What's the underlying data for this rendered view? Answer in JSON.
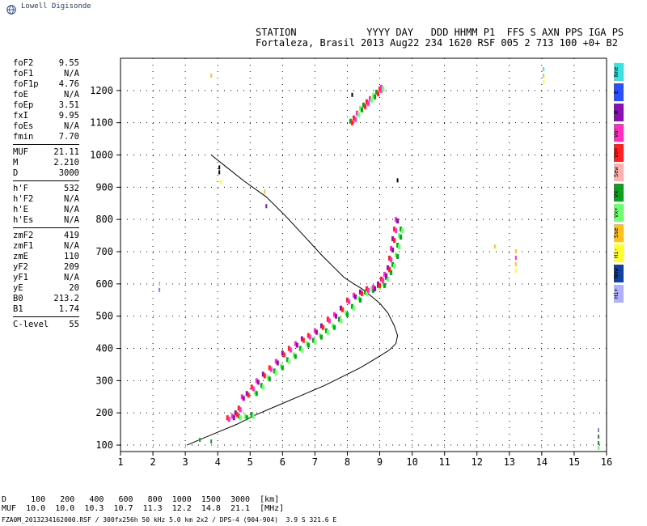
{
  "brand": {
    "text": "Lowell Digisonde",
    "icon": "globe-icon"
  },
  "header": {
    "line1": "STATION            YYYY DAY   DDD HHMM P1  FFS S AXN PPS IGA PS",
    "line2": "Fortaleza, Brasil 2013 Aug22 234 1620 RSF 005 2 713 100 +0+ B2"
  },
  "params": {
    "group1": [
      {
        "label": "foF2",
        "value": "9.55"
      },
      {
        "label": "foF1",
        "value": "N/A"
      },
      {
        "label": "foF1p",
        "value": "4.76"
      },
      {
        "label": "foE",
        "value": "N/A"
      },
      {
        "label": "foEp",
        "value": "3.51"
      },
      {
        "label": "fxI",
        "value": "9.95"
      },
      {
        "label": "foEs",
        "value": "N/A"
      },
      {
        "label": "fmin",
        "value": "7.70"
      }
    ],
    "group2": [
      {
        "label": "MUF",
        "value": "21.11"
      },
      {
        "label": "M",
        "value": "2.210"
      },
      {
        "label": "D",
        "value": "3000"
      }
    ],
    "group3": [
      {
        "label": "h'F",
        "value": "532"
      },
      {
        "label": "h'F2",
        "value": "N/A"
      },
      {
        "label": "h'E",
        "value": "N/A"
      },
      {
        "label": "h'Es",
        "value": "N/A"
      }
    ],
    "group4": [
      {
        "label": "zmF2",
        "value": "419"
      },
      {
        "label": "zmF1",
        "value": "N/A"
      },
      {
        "label": "zmE",
        "value": "110"
      },
      {
        "label": "yF2",
        "value": "209"
      },
      {
        "label": "yF1",
        "value": "N/A"
      },
      {
        "label": "yE",
        "value": "20"
      },
      {
        "label": "B0",
        "value": "213.2"
      },
      {
        "label": "B1",
        "value": "1.74"
      }
    ],
    "group5": [
      {
        "label": "C-level",
        "value": "55"
      }
    ]
  },
  "legend": [
    {
      "label": "Nne",
      "color": "#40e0e0"
    },
    {
      "label": "E",
      "color": "#2a50ff"
    },
    {
      "label": "W",
      "color": "#8a10b0"
    },
    {
      "label": "Vo-",
      "color": "#ff30c0"
    },
    {
      "label": "Vo+",
      "color": "#ff2020"
    },
    {
      "label": "Sew",
      "color": "#ffb0b0"
    },
    {
      "label": "Vx-",
      "color": "#10a020"
    },
    {
      "label": "Vx+",
      "color": "#70ff70"
    },
    {
      "label": "Sse",
      "color": "#ffc020"
    },
    {
      "label": "Hi-",
      "color": "#ffff30"
    },
    {
      "label": "Nnw",
      "color": "#1040a0"
    },
    {
      "label": "Hi+",
      "color": "#b0b0ff"
    }
  ],
  "muf_table": {
    "row1": "D     100   200   400   600   800  1000  1500  3000  [km]",
    "row2": "MUF  10.0  10.0  10.3  10.7  11.3  12.2  14.8  21.1  [MHz]"
  },
  "footer": "FZA0M_2013234162000.RSF / 300fx256h 50 kHz 5.0 km 2x2 / DPS-4 (904-904)  3.9 S 321.6 E",
  "chart_data": {
    "type": "scatter",
    "xlim": [
      1,
      16
    ],
    "ylim": [
      80,
      1300
    ],
    "xticks": [
      "1",
      "2",
      "3",
      "4",
      "5",
      "6",
      "7",
      "8",
      "9",
      "10",
      "11",
      "12",
      "13",
      "14",
      "15",
      "16"
    ],
    "yticks": [
      "100",
      "200",
      "300",
      "400",
      "500",
      "600",
      "700",
      "800",
      "900",
      "1000",
      "1100",
      "1200"
    ],
    "profile": {
      "x": [
        3.05,
        3.4,
        4.0,
        4.6,
        5.2,
        5.9,
        6.6,
        7.3,
        7.9,
        8.4,
        8.9,
        9.3,
        9.5,
        9.55,
        9.45,
        9.25,
        9.0,
        8.7,
        8.45,
        8.2,
        7.9,
        7.6,
        7.2,
        6.7,
        6.1,
        5.5,
        4.8,
        4.3,
        3.8
      ],
      "y": [
        100,
        115,
        140,
        165,
        195,
        225,
        255,
        285,
        315,
        340,
        370,
        395,
        415,
        440,
        470,
        510,
        540,
        565,
        585,
        600,
        620,
        650,
        690,
        745,
        810,
        870,
        920,
        960,
        1000
      ]
    },
    "trace_o": {
      "x": [
        4.3,
        4.45,
        4.55,
        4.65,
        4.75,
        4.9,
        5.05,
        5.2,
        5.4,
        5.6,
        5.8,
        6.0,
        6.2,
        6.4,
        6.6,
        6.8,
        7.0,
        7.2,
        7.4,
        7.6,
        7.8,
        8.0,
        8.2,
        8.4,
        8.6,
        8.8,
        8.95,
        9.05,
        9.15,
        9.25,
        9.3,
        9.35,
        9.4,
        9.45,
        9.5
      ],
      "y": [
        185,
        190,
        200,
        215,
        250,
        260,
        280,
        300,
        320,
        340,
        360,
        385,
        400,
        415,
        430,
        440,
        455,
        470,
        490,
        505,
        525,
        550,
        565,
        575,
        585,
        590,
        600,
        615,
        630,
        650,
        680,
        710,
        740,
        770,
        800
      ]
    },
    "trace_x": {
      "x": [
        4.6,
        4.8,
        5.0,
        5.1,
        5.3,
        5.5,
        5.7,
        5.9,
        6.1,
        6.3,
        6.5,
        6.7,
        6.9,
        7.1,
        7.3,
        7.5,
        7.7,
        7.9,
        8.1,
        8.3,
        8.5,
        8.7,
        8.9,
        9.05,
        9.15,
        9.25,
        9.35,
        9.45,
        9.5,
        9.55,
        9.6
      ],
      "y": [
        190,
        190,
        195,
        265,
        285,
        310,
        330,
        345,
        365,
        380,
        400,
        415,
        425,
        440,
        455,
        470,
        490,
        510,
        530,
        555,
        575,
        585,
        595,
        600,
        620,
        640,
        660,
        690,
        720,
        750,
        770
      ]
    },
    "trace_upper": {
      "x": [
        8.1,
        8.2,
        8.3,
        8.4,
        8.5,
        8.6,
        8.7,
        8.8,
        8.9,
        9.0,
        9.05
      ],
      "y": [
        1105,
        1115,
        1130,
        1145,
        1155,
        1165,
        1175,
        1185,
        1195,
        1205,
        1210
      ]
    },
    "spots": [
      {
        "x": 2.2,
        "y": 580,
        "c": "#8080ff"
      },
      {
        "x": 2.2,
        "y": 600,
        "c": "#c0c0c0"
      },
      {
        "x": 3.45,
        "y": 115,
        "c": "#10a020"
      },
      {
        "x": 3.8,
        "y": 110,
        "c": "#10a020"
      },
      {
        "x": 3.8,
        "y": 1245,
        "c": "#ffc020"
      },
      {
        "x": 4.05,
        "y": 960,
        "c": "#000000"
      },
      {
        "x": 4.05,
        "y": 945,
        "c": "#000000"
      },
      {
        "x": 4.1,
        "y": 915,
        "c": "#ffff30"
      },
      {
        "x": 5.45,
        "y": 885,
        "c": "#ffc020"
      },
      {
        "x": 5.5,
        "y": 840,
        "c": "#8a10b0"
      },
      {
        "x": 8.15,
        "y": 1185,
        "c": "#000000"
      },
      {
        "x": 9.55,
        "y": 920,
        "c": "#000000"
      },
      {
        "x": 12.55,
        "y": 715,
        "c": "#ffc020"
      },
      {
        "x": 13.2,
        "y": 700,
        "c": "#ffc020"
      },
      {
        "x": 13.2,
        "y": 680,
        "c": "#ff30c0"
      },
      {
        "x": 13.2,
        "y": 660,
        "c": "#ffc020"
      },
      {
        "x": 13.2,
        "y": 640,
        "c": "#ffff30"
      },
      {
        "x": 14.05,
        "y": 1265,
        "c": "#40e0e0"
      },
      {
        "x": 14.05,
        "y": 1245,
        "c": "#ffc020"
      },
      {
        "x": 14.05,
        "y": 1225,
        "c": "#ffff30"
      },
      {
        "x": 15.75,
        "y": 145,
        "c": "#8080ff"
      },
      {
        "x": 15.75,
        "y": 125,
        "c": "#10a020"
      },
      {
        "x": 15.75,
        "y": 105,
        "c": "#10a020"
      },
      {
        "x": 15.75,
        "y": 90,
        "c": "#70ff70"
      }
    ]
  }
}
